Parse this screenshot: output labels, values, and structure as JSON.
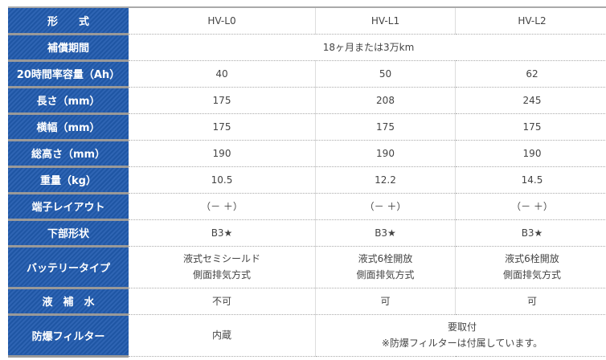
{
  "columns": [
    "HV-L0",
    "HV-L1",
    "HV-L2"
  ],
  "header_label": "形　　式",
  "warranty": {
    "label": "補償期間",
    "value": "18ヶ月または3万km"
  },
  "rows": [
    {
      "label": "20時間率容量（Ah）",
      "values": [
        "40",
        "50",
        "62"
      ]
    },
    {
      "label": "長さ（mm）",
      "values": [
        "175",
        "208",
        "245"
      ]
    },
    {
      "label": "横幅（mm）",
      "values": [
        "175",
        "175",
        "175"
      ]
    },
    {
      "label": "総高さ（mm）",
      "values": [
        "190",
        "190",
        "190"
      ]
    },
    {
      "label": "重量（kg）",
      "values": [
        "10.5",
        "12.2",
        "14.5"
      ]
    },
    {
      "label": "端子レイアウト",
      "values": [
        "（－ ＋）",
        "（－ ＋）",
        "（－ ＋）"
      ]
    },
    {
      "label": "下部形状",
      "values": [
        "B3★",
        "B3★",
        "B3★"
      ]
    }
  ],
  "battery_type": {
    "label": "バッテリータイプ",
    "values": [
      [
        "液式セミシールド",
        "側面排気方式"
      ],
      [
        "液式6栓開放",
        "側面排気方式"
      ],
      [
        "液式6栓開放",
        "側面排気方式"
      ]
    ]
  },
  "water": {
    "label": "液　補　水",
    "values": [
      "不可",
      "可",
      "可"
    ]
  },
  "filter": {
    "label": "防爆フィルター",
    "l0": "内蔵",
    "other_line1": "要取付",
    "other_line2": "※防爆フィルターは付属しています。"
  }
}
